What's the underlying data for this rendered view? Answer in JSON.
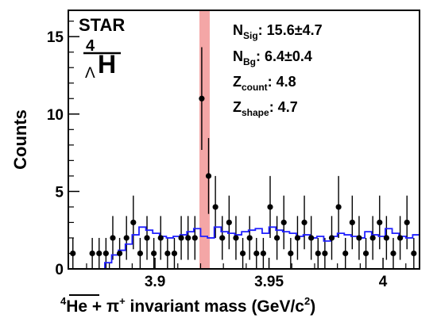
{
  "chart_data": {
    "type": "scatter",
    "experiment_label": "STAR",
    "particle": {
      "base": "H",
      "mass_number": "4",
      "subscript": "Λ"
    },
    "ylabel": "Counts",
    "xlabel": {
      "he_mass": "4",
      "he_symbol": "He",
      "plus": " + ",
      "pion": "π",
      "pion_charge": "+",
      "text": " invariant mass (GeV/c",
      "power": "2",
      "close": ")"
    },
    "xlim": [
      3.862,
      4.016
    ],
    "ylim": [
      0,
      16.7
    ],
    "x_ticks": [
      3.9,
      3.95,
      4.0
    ],
    "x_tick_labels": [
      "3.9",
      "3.95",
      "4"
    ],
    "y_ticks": [
      0,
      5,
      10,
      15
    ],
    "y_tick_labels": [
      "0",
      "5",
      "10",
      "15"
    ],
    "grid": false,
    "signal_window": [
      3.9195,
      3.924
    ],
    "signal_window_color": "#f4a6a6",
    "annotations": [
      {
        "main": "N",
        "sub": "Sig",
        "value": ": 15.6±4.7"
      },
      {
        "main": "N",
        "sub": "Bg",
        "value": ": 6.4±0.4"
      },
      {
        "main": "Z",
        "sub": "count",
        "value": ": 4.8"
      },
      {
        "main": "Z",
        "sub": "shape",
        "value": ": 4.7"
      }
    ],
    "series": [
      {
        "style": "data-points",
        "color": "#000000",
        "x": [
          3.864,
          3.8725,
          3.8755,
          3.8785,
          3.8815,
          3.8845,
          3.8875,
          3.8905,
          3.8935,
          3.8965,
          3.8995,
          3.9025,
          3.9055,
          3.9085,
          3.9115,
          3.9145,
          3.9175,
          3.9205,
          3.9235,
          3.9265,
          3.9295,
          3.9325,
          3.9355,
          3.9385,
          3.9415,
          3.9445,
          3.9475,
          3.9505,
          3.9535,
          3.9565,
          3.9595,
          3.9625,
          3.9655,
          3.9685,
          3.9715,
          3.9745,
          3.9775,
          3.9805,
          3.9835,
          3.9865,
          3.9895,
          3.9925,
          3.9955,
          3.9985,
          4.0015,
          4.0045,
          4.0075,
          4.0105,
          4.0135
        ],
        "y": [
          1,
          1,
          1,
          1,
          2,
          1,
          2,
          3,
          1,
          2,
          1,
          2,
          1,
          1,
          2,
          2,
          2,
          11,
          6,
          4,
          2,
          3,
          2,
          1,
          2,
          1,
          1,
          4,
          2,
          3,
          1,
          2,
          3,
          2,
          1,
          1,
          2,
          4,
          1,
          3,
          2,
          1,
          2,
          3,
          2,
          1,
          2,
          3,
          1
        ]
      },
      {
        "style": "background-histogram",
        "color": "#1f1fff",
        "x": [
          3.8795,
          3.8825,
          3.8855,
          3.8885,
          3.8915,
          3.8945,
          3.8975,
          3.9005,
          3.9035,
          3.9065,
          3.9095,
          3.9125,
          3.9155,
          3.9185,
          3.9215,
          3.9245,
          3.9275,
          3.9305,
          3.9335,
          3.9365,
          3.9395,
          3.9425,
          3.9455,
          3.9485,
          3.9515,
          3.9545,
          3.9575,
          3.9605,
          3.9635,
          3.9665,
          3.9695,
          3.9725,
          3.9755,
          3.9785,
          3.9815,
          3.9845,
          3.9875,
          3.9905,
          3.9935,
          3.9965,
          3.9995,
          4.0025,
          4.0055,
          4.0085,
          4.0115,
          4.0145
        ],
        "y": [
          0.4,
          0.9,
          1.2,
          1.6,
          2.2,
          2.7,
          2.5,
          2.3,
          2.1,
          2.0,
          2.1,
          2.2,
          2.4,
          2.6,
          2.1,
          2.0,
          2.7,
          2.4,
          2.3,
          2.2,
          2.4,
          2.5,
          2.6,
          2.3,
          2.7,
          2.5,
          2.4,
          2.3,
          2.1,
          2.2,
          2.0,
          2.1,
          1.8,
          2.1,
          2.3,
          2.2,
          2.1,
          2.0,
          2.4,
          2.2,
          2.1,
          2.6,
          2.3,
          2.1,
          2.0,
          2.2
        ]
      }
    ]
  }
}
